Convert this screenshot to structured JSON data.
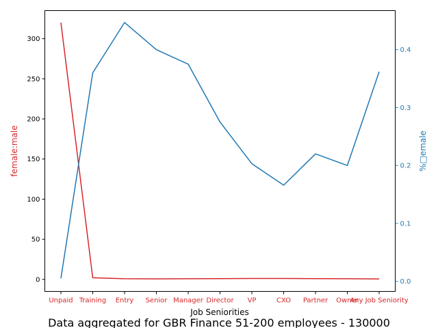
{
  "chart_data": {
    "type": "line",
    "caption": "Data aggregated for GBR Finance 51-200 employees - 130000",
    "xlabel": "Job Seniorities",
    "categories": [
      "Unpaid",
      "Training",
      "Entry",
      "Senior",
      "Manager",
      "Director",
      "VP",
      "CXO",
      "Partner",
      "Owner",
      "Any Job Seniority"
    ],
    "left_axis": {
      "label": "female:male",
      "color": "#d62728",
      "ylim": [
        -15,
        335
      ],
      "ticks": [
        0,
        50,
        100,
        150,
        200,
        250,
        300
      ]
    },
    "right_axis": {
      "label": "%□emale",
      "color": "#1f77b4",
      "ylim": [
        -0.0175,
        0.4675
      ],
      "ticks": [
        0.0,
        0.1,
        0.2,
        0.3,
        0.4
      ],
      "tick_labels": [
        "0.0",
        "0.1",
        "0.2",
        "0.3",
        "0.4"
      ]
    },
    "series": [
      {
        "axis": "left",
        "color": "#d62728",
        "values": [
          320,
          2,
          0.8,
          0.7,
          0.8,
          1.0,
          1.2,
          1.2,
          1.0,
          0.8,
          0.6
        ]
      },
      {
        "axis": "right",
        "color": "#1f77b4",
        "values": [
          0.005,
          0.36,
          0.447,
          0.4,
          0.375,
          0.275,
          0.203,
          0.166,
          0.22,
          0.2,
          0.362
        ]
      }
    ]
  }
}
